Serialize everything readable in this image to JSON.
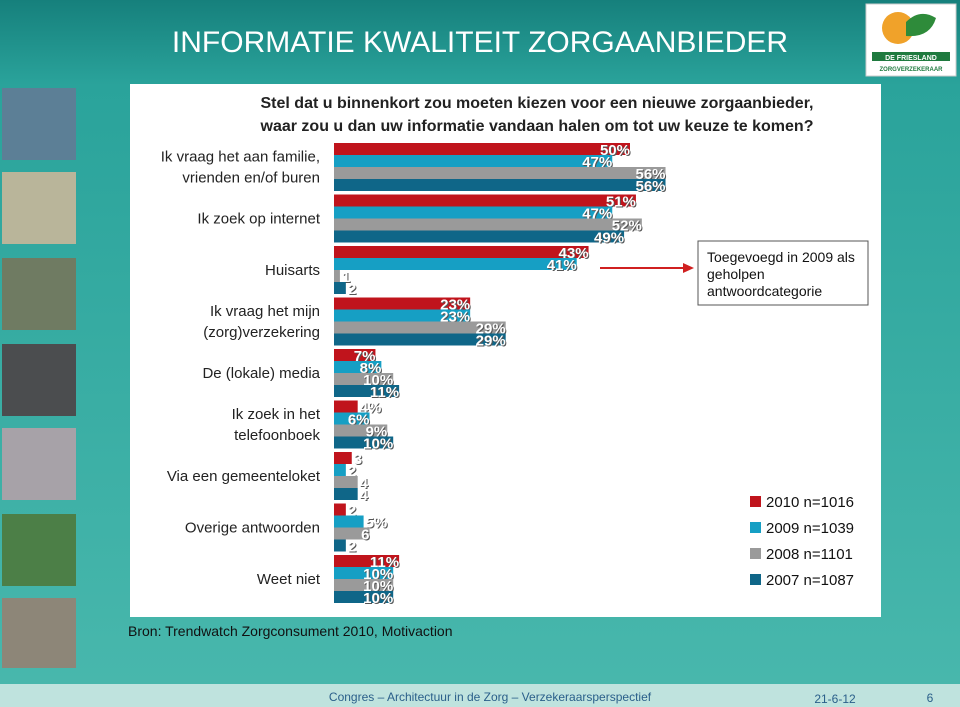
{
  "slide": {
    "title": "INFORMATIE KWALITEIT ZORGAANBIEDER",
    "logo": {
      "line1": "DE FRIESLAND",
      "line2": "ZORGVERZEKERAAR"
    },
    "source": "Bron: Trendwatch Zorgconsument 2010, Motivaction",
    "footer": "Congres – Architectuur in de Zorg – Verzekeraarsperspectief",
    "date": "21-6-12",
    "page": "6"
  },
  "chart_data": {
    "type": "hbar",
    "title": "Stel dat u binnenkort zou moeten kiezen voor een nieuwe zorgaanbieder,",
    "subtitle": "waar zou u dan uw informatie vandaan halen om tot uw keuze te komen?",
    "categories": [
      "Ik vraag het aan familie,\nvrienden en/of buren",
      "Ik zoek op internet",
      "Huisarts",
      "Ik vraag het mijn\n(zorg)verzekering",
      "De (lokale) media",
      "Ik zoek in het\ntelefoonboek",
      "Via een gemeenteloket",
      "Overige antwoorden",
      "Weet niet"
    ],
    "series": [
      {
        "name": "2010 n=1016",
        "color": "#c0141c",
        "values": [
          50,
          51,
          43,
          23,
          7,
          4,
          3,
          2,
          11
        ],
        "value_labels": [
          "50%",
          "51%",
          "43%",
          "23%",
          "7%",
          "4%",
          "3",
          "2",
          "11%"
        ]
      },
      {
        "name": "2009 n=1039",
        "color": "#169fc4",
        "values": [
          47,
          47,
          41,
          23,
          8,
          6,
          2,
          5,
          10
        ],
        "value_labels": [
          "47%",
          "47%",
          "41%",
          "23%",
          "8%",
          "6%",
          "2",
          "5%",
          "10%"
        ]
      },
      {
        "name": "2008 n=1101",
        "color": "#9a9a9a",
        "values": [
          56,
          52,
          1,
          29,
          10,
          9,
          4,
          6,
          10
        ],
        "value_labels": [
          "56%",
          "52%",
          "1",
          "29%",
          "10%",
          "9%",
          "4",
          "6",
          "10%"
        ]
      },
      {
        "name": "2007 n=1087",
        "color": "#0f6688",
        "values": [
          56,
          49,
          2,
          29,
          11,
          10,
          4,
          2,
          10
        ],
        "value_labels": [
          "56%",
          "49%",
          "2",
          "29%",
          "11%",
          "10%",
          "4",
          "2",
          "10%"
        ]
      }
    ],
    "annotation": "Toegevoegd in 2009 als geholpen antwoordcategorie",
    "legend": "right"
  }
}
